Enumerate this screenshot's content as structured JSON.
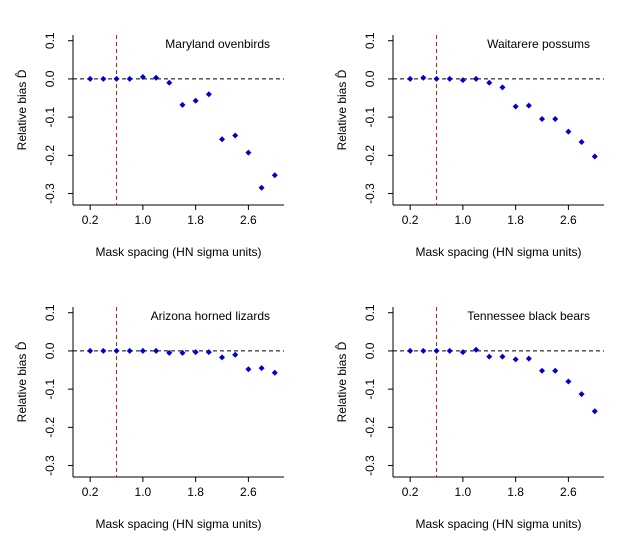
{
  "chart_data": [
    {
      "type": "scatter",
      "title": "Maryland ovenbirds",
      "xlabel": "Mask spacing (HN sigma units)",
      "ylabel": "Relative bias D̂",
      "x": [
        0.2,
        0.4,
        0.6,
        0.8,
        1.0,
        1.2,
        1.4,
        1.6,
        1.8,
        2.0,
        2.2,
        2.4,
        2.6,
        2.8,
        3.0
      ],
      "values": [
        0,
        0,
        0,
        0,
        0.005,
        0.003,
        -0.01,
        -0.068,
        -0.057,
        -0.04,
        -0.158,
        -0.148,
        -0.193,
        -0.285,
        -0.252
      ],
      "color": "#0000cd",
      "xlim": [
        -0.06,
        3.14
      ],
      "ylim": [
        -0.33,
        0.115
      ],
      "xticks": [
        0.2,
        {
          "value": 1.0,
          "label": "1.0"
        },
        1.8,
        2.6
      ],
      "yticks": [
        -0.3,
        -0.2,
        -0.1,
        {
          "value": 0,
          "label": "0.0"
        },
        0.1
      ],
      "hline": 0,
      "vline": 0.6,
      "vline_color": "#b22222"
    },
    {
      "type": "scatter",
      "title": "Waitarere possums",
      "xlabel": "Mask spacing (HN sigma units)",
      "ylabel": "Relative bias D̂",
      "x": [
        0.2,
        0.4,
        0.6,
        0.8,
        1.0,
        1.2,
        1.4,
        1.6,
        1.8,
        2.0,
        2.2,
        2.4,
        2.6,
        2.8,
        3.0
      ],
      "values": [
        0,
        0.003,
        0,
        0,
        -0.003,
        0,
        -0.01,
        -0.022,
        -0.072,
        -0.07,
        -0.105,
        -0.105,
        -0.138,
        -0.165,
        -0.203
      ],
      "color": "#0000cd",
      "xlim": [
        -0.06,
        3.14
      ],
      "ylim": [
        -0.33,
        0.115
      ],
      "xticks": [
        0.2,
        {
          "value": 1.0,
          "label": "1.0"
        },
        1.8,
        2.6
      ],
      "yticks": [
        -0.3,
        -0.2,
        -0.1,
        {
          "value": 0,
          "label": "0.0"
        },
        0.1
      ],
      "hline": 0,
      "vline": 0.6,
      "vline_color": "#b22222"
    },
    {
      "type": "scatter",
      "title": "Arizona horned lizards",
      "xlabel": "Mask spacing (HN sigma units)",
      "ylabel": "Relative bias D̂",
      "x": [
        0.2,
        0.4,
        0.6,
        0.8,
        1.0,
        1.2,
        1.4,
        1.6,
        1.8,
        2.0,
        2.2,
        2.4,
        2.6,
        2.8,
        3.0
      ],
      "values": [
        0,
        0,
        0,
        0,
        0,
        0,
        -0.005,
        -0.005,
        -0.003,
        -0.003,
        -0.017,
        -0.01,
        -0.048,
        -0.045,
        -0.057
      ],
      "color": "#0000cd",
      "xlim": [
        -0.06,
        3.14
      ],
      "ylim": [
        -0.33,
        0.115
      ],
      "xticks": [
        0.2,
        {
          "value": 1.0,
          "label": "1.0"
        },
        1.8,
        2.6
      ],
      "yticks": [
        -0.3,
        -0.2,
        -0.1,
        {
          "value": 0,
          "label": "0.0"
        },
        0.1
      ],
      "hline": 0,
      "vline": 0.6,
      "vline_color": "#b22222"
    },
    {
      "type": "scatter",
      "title": "Tennessee black bears",
      "xlabel": "Mask spacing (HN sigma units)",
      "ylabel": "Relative bias D̂",
      "x": [
        0.2,
        0.4,
        0.6,
        0.8,
        1.0,
        1.2,
        1.4,
        1.6,
        1.8,
        2.0,
        2.2,
        2.4,
        2.6,
        2.8,
        3.0
      ],
      "values": [
        0,
        0,
        0,
        0,
        -0.003,
        0.003,
        -0.015,
        -0.015,
        -0.022,
        -0.02,
        -0.052,
        -0.052,
        -0.08,
        -0.113,
        -0.158
      ],
      "color": "#0000cd",
      "xlim": [
        -0.06,
        3.14
      ],
      "ylim": [
        -0.33,
        0.115
      ],
      "xticks": [
        0.2,
        {
          "value": 1.0,
          "label": "1.0"
        },
        1.8,
        2.6
      ],
      "yticks": [
        -0.3,
        -0.2,
        -0.1,
        {
          "value": 0,
          "label": "0.0"
        },
        0.1
      ],
      "hline": 0,
      "vline": 0.6,
      "vline_color": "#b22222"
    }
  ]
}
